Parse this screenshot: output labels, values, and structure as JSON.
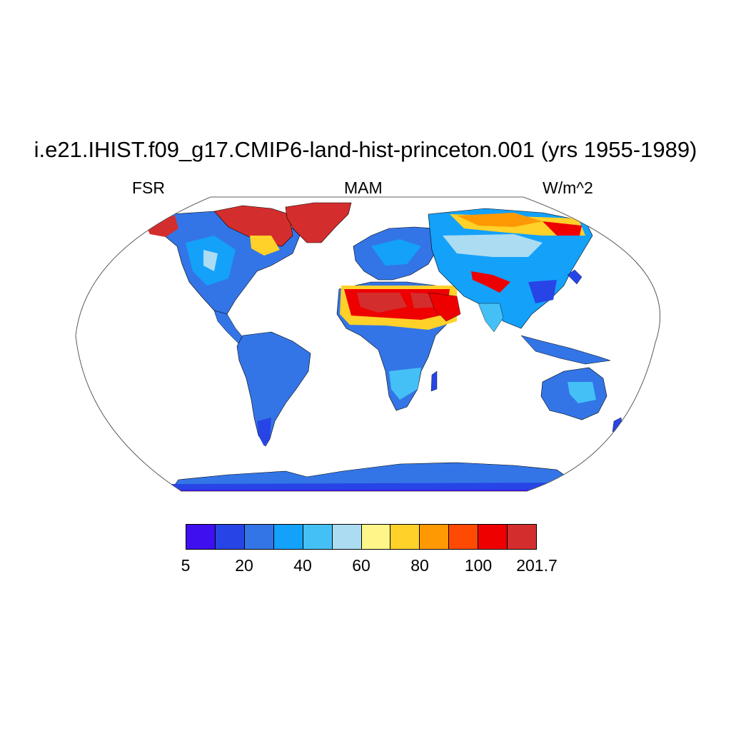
{
  "title": "i.e21.IHIST.f09_g17.CMIP6-land-hist-princeton.001 (yrs 1955-1989)",
  "subtitle_left": "FSR",
  "subtitle_center": "MAM",
  "subtitle_right": "W/m^2",
  "colorbar": {
    "colors": [
      "#3f0fef",
      "#2745e6",
      "#3375e6",
      "#14a1fa",
      "#44c0f6",
      "#acdcf2",
      "#fff68a",
      "#ffd129",
      "#ff9903",
      "#ff4a03",
      "#ee0000",
      "#d42d2d"
    ],
    "labels": [
      "5",
      "20",
      "40",
      "60",
      "80",
      "100",
      "201.7"
    ]
  },
  "colors": {
    "ocean": "#ffffff",
    "coast": "#000000"
  }
}
